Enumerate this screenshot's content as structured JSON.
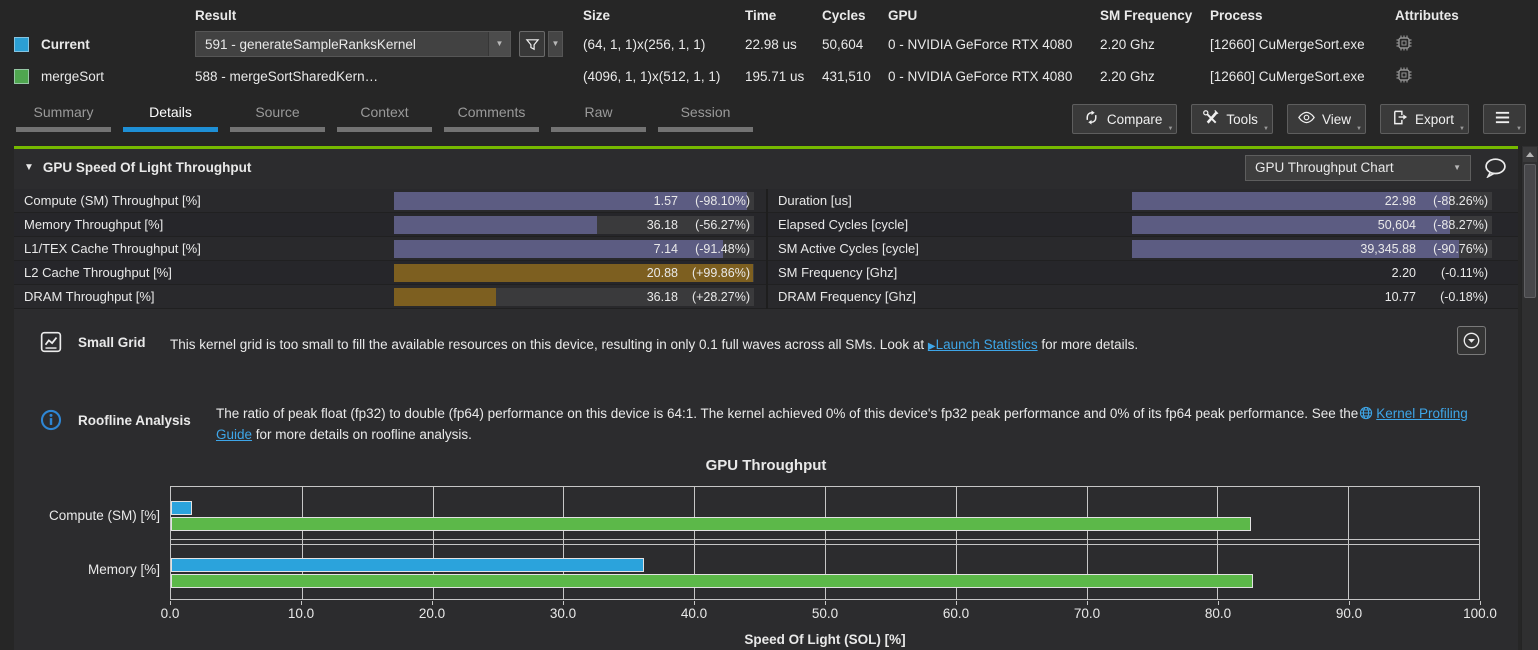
{
  "colors": {
    "accent_green": "#76b900",
    "tab_active_blue": "#1e8fd5",
    "link_blue": "#3ea6e8",
    "bar_decrease": "#5c5c82",
    "bar_increase": "#7d5f20",
    "swatch_current": "#2b9fd4",
    "swatch_baseline": "#4fa64f"
  },
  "header": {
    "columns": [
      "Result",
      "Size",
      "Time",
      "Cycles",
      "GPU",
      "SM Frequency",
      "Process",
      "Attributes"
    ],
    "rows": [
      {
        "name": "Current",
        "bold": true,
        "swatch": "#2b9fd4",
        "is_dropdown": true,
        "result": "591 - generateSampleRanksKernel",
        "size": "(64, 1, 1)x(256, 1, 1)",
        "time": "22.98 us",
        "cycles": "50,604",
        "gpu": "0 - NVIDIA GeForce RTX 4080",
        "sm_frequency": "2.20 Ghz",
        "process": "[12660] CuMergeSort.exe",
        "attributes_icon": "chip-icon"
      },
      {
        "name": "mergeSort",
        "bold": false,
        "swatch": "#4fa64f",
        "is_dropdown": false,
        "result": "588 - mergeSortSharedKern…",
        "size": "(4096, 1, 1)x(512, 1, 1)",
        "time": "195.71 us",
        "cycles": "431,510",
        "gpu": "0 - NVIDIA GeForce RTX 4080",
        "sm_frequency": "2.20 Ghz",
        "process": "[12660] CuMergeSort.exe",
        "attributes_icon": "chip-icon"
      }
    ]
  },
  "tabs": [
    {
      "label": "Summary",
      "active": false
    },
    {
      "label": "Details",
      "active": true
    },
    {
      "label": "Source",
      "active": false
    },
    {
      "label": "Context",
      "active": false
    },
    {
      "label": "Comments",
      "active": false
    },
    {
      "label": "Raw",
      "active": false
    },
    {
      "label": "Session",
      "active": false
    }
  ],
  "toolbar": {
    "buttons": [
      {
        "label": "Compare",
        "icon": "compare-icon"
      },
      {
        "label": "Tools",
        "icon": "tools-icon"
      },
      {
        "label": "View",
        "icon": "eye-icon"
      },
      {
        "label": "Export",
        "icon": "export-icon"
      },
      {
        "label": "",
        "icon": "menu-icon"
      }
    ]
  },
  "section": {
    "collapse_icon": "triangle-down-icon",
    "title": "GPU Speed Of Light Throughput",
    "chart_selector": {
      "value": "GPU Throughput Chart",
      "icon": "chevron-down-icon"
    },
    "comment_icon": "comment-icon"
  },
  "metrics": {
    "left": [
      {
        "label": "Compute (SM) Throughput [%]",
        "value": "1.57",
        "delta": "(-98.10%)",
        "bar": 98.1,
        "trend": "down"
      },
      {
        "label": "Memory Throughput [%]",
        "value": "36.18",
        "delta": "(-56.27%)",
        "bar": 56.27,
        "trend": "down"
      },
      {
        "label": "L1/TEX Cache Throughput [%]",
        "value": "7.14",
        "delta": "(-91.48%)",
        "bar": 91.48,
        "trend": "down"
      },
      {
        "label": "L2 Cache Throughput [%]",
        "value": "20.88",
        "delta": "(+99.86%)",
        "bar": 99.86,
        "trend": "up"
      },
      {
        "label": "DRAM Throughput [%]",
        "value": "36.18",
        "delta": "(+28.27%)",
        "bar": 28.27,
        "trend": "up"
      }
    ],
    "right": [
      {
        "label": "Duration [us]",
        "value": "22.98",
        "delta": "(-88.26%)",
        "bar": 88.26,
        "trend": "down"
      },
      {
        "label": "Elapsed Cycles [cycle]",
        "value": "50,604",
        "delta": "(-88.27%)",
        "bar": 88.27,
        "trend": "down"
      },
      {
        "label": "SM Active Cycles [cycle]",
        "value": "39,345.88",
        "delta": "(-90.76%)",
        "bar": 90.76,
        "trend": "down"
      },
      {
        "label": "SM Frequency [Ghz]",
        "value": "2.20",
        "delta": "(-0.11%)",
        "bar": 0,
        "trend": "none"
      },
      {
        "label": "DRAM Frequency [Ghz]",
        "value": "10.77",
        "delta": "(-0.18%)",
        "bar": 0,
        "trend": "none"
      }
    ]
  },
  "notes": {
    "small_grid": {
      "icon": "chart-line-icon",
      "title": "Small Grid",
      "text_before": "This kernel grid is too small to fill the available resources on this device, resulting in only 0.1 full waves across all SMs. Look at ",
      "link_prefix": "▶",
      "link": "Launch Statistics",
      "text_after": " for more details.",
      "button_icon": "circle-chevron-down-icon"
    },
    "roofline": {
      "icon": "info-icon",
      "title": "Roofline Analysis",
      "text_before": "The ratio of peak float (fp32) to double (fp64) performance on this device is 64:1. The kernel achieved 0% of this device's fp32 peak performance and 0% of its fp64 peak performance. See the",
      "link_icon": "globe-icon",
      "link": "Kernel Profiling Guide",
      "text_after": " for more details on roofline analysis."
    }
  },
  "chart_data": {
    "type": "bar",
    "orientation": "horizontal",
    "title": "GPU Throughput",
    "xlabel": "Speed Of Light (SOL) [%]",
    "categories": [
      "Compute (SM) [%]",
      "Memory [%]"
    ],
    "series": [
      {
        "name": "Current",
        "color": "#2ba3dc",
        "values": [
          1.57,
          36.18
        ]
      },
      {
        "name": "mergeSort",
        "color": "#5cb849",
        "values": [
          82.6,
          82.7
        ]
      }
    ],
    "xlim": [
      0,
      100
    ],
    "xtick_labels": [
      "0.0",
      "10.0",
      "20.0",
      "30.0",
      "40.0",
      "50.0",
      "60.0",
      "70.0",
      "80.0",
      "90.0",
      "100.0"
    ],
    "grid": true,
    "legend_position": "header-top-left"
  }
}
